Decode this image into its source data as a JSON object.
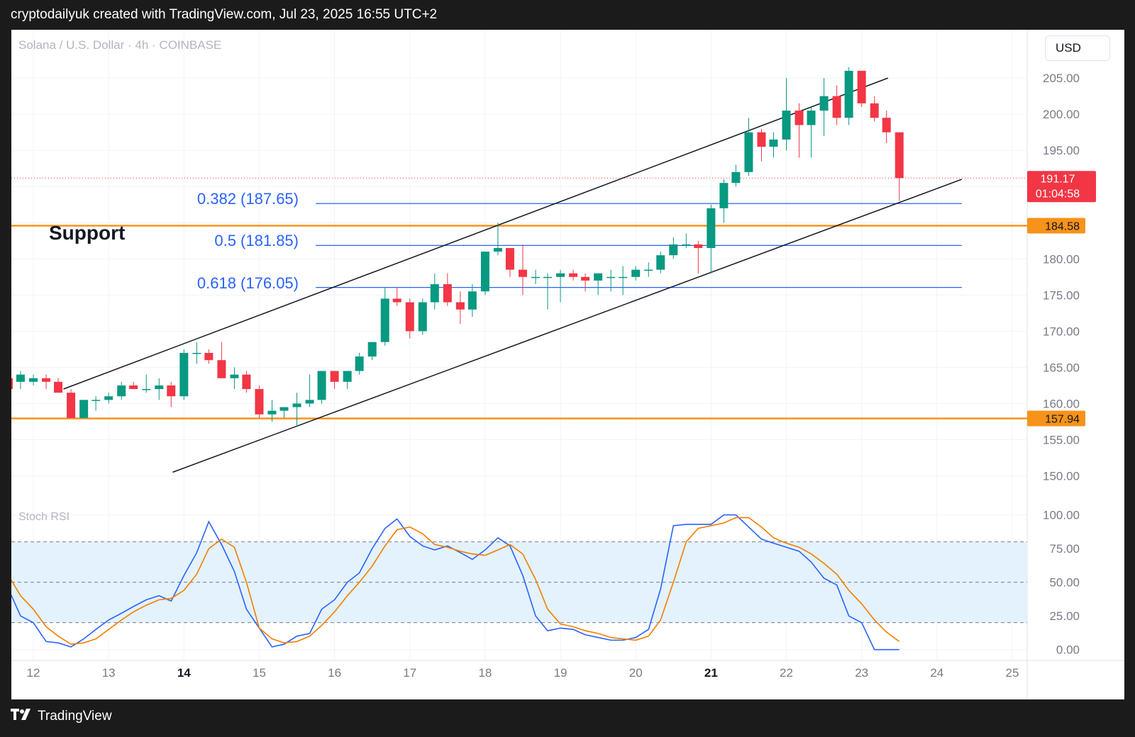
{
  "header": {
    "caption": "cryptodailyuk created with TradingView.com, Jul 23, 2025 16:55 UTC+2"
  },
  "footer": {
    "brand": "TradingView",
    "logo_icon": "tradingview-logo-icon"
  },
  "chart_header": {
    "symbol": "Solana / U.S. Dollar · 4h · COINBASE",
    "currency": "USD"
  },
  "colors": {
    "up": "#089981",
    "down": "#f23645",
    "fib": "#2962ff",
    "support": "#f7931a",
    "stoch_k": "#2962ff",
    "stoch_d": "#f57c00",
    "band": "#e3f2fd"
  },
  "labels": {
    "support": "Support",
    "fib_382": "0.382 (187.65)",
    "fib_500": "0.5 (181.85)",
    "fib_618": "0.618 (176.05)",
    "price_now": "191.17",
    "countdown": "01:04:58",
    "upper_support": "184.58",
    "lower_support": "157.94",
    "stoch_title": "Stoch RSI"
  },
  "chart_data": [
    {
      "type": "candlestick",
      "title": "Solana / U.S. Dollar · 4h · COINBASE",
      "y_ticks": [
        150,
        155,
        160,
        165,
        170,
        175,
        180,
        185,
        190,
        195,
        200,
        205
      ],
      "y_tick_labels": [
        "150.00",
        "155.00",
        "160.00",
        "165.00",
        "170.00",
        "175.00",
        "180.00",
        "",
        "",
        "195.00",
        "200.00",
        "205.00"
      ],
      "ylim": [
        147.5,
        210.5
      ],
      "x_tick_labels": [
        {
          "label": "12",
          "day": 12,
          "bold": false
        },
        {
          "label": "13",
          "day": 13,
          "bold": false
        },
        {
          "label": "14",
          "day": 14,
          "bold": true
        },
        {
          "label": "15",
          "day": 15,
          "bold": false
        },
        {
          "label": "16",
          "day": 16,
          "bold": false
        },
        {
          "label": "17",
          "day": 17,
          "bold": false
        },
        {
          "label": "18",
          "day": 18,
          "bold": false
        },
        {
          "label": "19",
          "day": 19,
          "bold": false
        },
        {
          "label": "20",
          "day": 20,
          "bold": false
        },
        {
          "label": "21",
          "day": 21,
          "bold": true
        },
        {
          "label": "22",
          "day": 22,
          "bold": false
        },
        {
          "label": "23",
          "day": 23,
          "bold": false
        },
        {
          "label": "24",
          "day": 24,
          "bold": false
        },
        {
          "label": "25",
          "day": 25,
          "bold": false
        }
      ],
      "candles": [
        [
          11.67,
          163.5,
          165.0,
          161.5,
          162.0
        ],
        [
          11.83,
          163.0,
          164.5,
          162.0,
          164.0
        ],
        [
          12.0,
          163.0,
          164.0,
          162.5,
          163.5
        ],
        [
          12.17,
          163.5,
          164.0,
          162.0,
          163.0
        ],
        [
          12.33,
          163.0,
          163.5,
          161.5,
          161.5
        ],
        [
          12.5,
          161.5,
          162.0,
          158.0,
          158.0
        ],
        [
          12.67,
          158.0,
          160.5,
          158.0,
          160.5
        ],
        [
          12.83,
          160.5,
          161.0,
          159.0,
          160.5
        ],
        [
          13.0,
          160.5,
          161.5,
          160.0,
          161.0
        ],
        [
          13.17,
          161.0,
          163.0,
          160.5,
          162.5
        ],
        [
          13.33,
          162.5,
          163.0,
          162.0,
          162.0
        ],
        [
          13.5,
          162.0,
          164.0,
          161.5,
          162.0
        ],
        [
          13.67,
          162.0,
          163.5,
          160.5,
          162.5
        ],
        [
          13.83,
          162.5,
          163.0,
          159.5,
          161.0
        ],
        [
          14.0,
          161.0,
          167.5,
          160.5,
          167.0
        ],
        [
          14.17,
          167.0,
          168.5,
          165.5,
          167.0
        ],
        [
          14.33,
          167.0,
          167.5,
          165.5,
          166.0
        ],
        [
          14.5,
          166.0,
          168.5,
          163.5,
          163.5
        ],
        [
          14.67,
          163.5,
          165.0,
          162.0,
          164.0
        ],
        [
          14.83,
          164.0,
          164.5,
          161.5,
          162.0
        ],
        [
          15.0,
          162.0,
          162.5,
          158.0,
          158.5
        ],
        [
          15.17,
          158.5,
          160.5,
          157.5,
          159.0
        ],
        [
          15.33,
          159.0,
          159.5,
          158.0,
          159.5
        ],
        [
          15.5,
          159.5,
          161.5,
          157.0,
          160.0
        ],
        [
          15.67,
          160.0,
          164.0,
          159.5,
          160.5
        ],
        [
          15.83,
          160.5,
          164.5,
          160.0,
          164.5
        ],
        [
          16.0,
          164.5,
          164.5,
          162.0,
          163.0
        ],
        [
          16.17,
          163.0,
          164.5,
          162.0,
          164.5
        ],
        [
          16.33,
          164.5,
          167.0,
          164.0,
          166.5
        ],
        [
          16.5,
          166.5,
          168.5,
          166.0,
          168.5
        ],
        [
          16.67,
          168.5,
          176.0,
          168.0,
          174.5
        ],
        [
          16.83,
          174.5,
          176.0,
          173.5,
          174.0
        ],
        [
          17.0,
          174.0,
          174.5,
          169.0,
          170.0
        ],
        [
          17.17,
          170.0,
          174.5,
          169.5,
          174.0
        ],
        [
          17.33,
          174.0,
          178.0,
          173.0,
          176.5
        ],
        [
          17.5,
          176.5,
          178.0,
          173.5,
          174.0
        ],
        [
          17.67,
          174.0,
          175.5,
          171.0,
          173.0
        ],
        [
          17.83,
          173.0,
          176.5,
          172.0,
          175.5
        ],
        [
          18.0,
          175.5,
          181.0,
          175.0,
          181.0
        ],
        [
          18.17,
          181.0,
          185.0,
          180.5,
          181.5
        ],
        [
          18.33,
          181.5,
          181.5,
          177.5,
          178.5
        ],
        [
          18.5,
          178.5,
          182.0,
          175.0,
          177.5
        ],
        [
          18.67,
          177.5,
          178.5,
          176.5,
          177.5
        ],
        [
          18.83,
          177.5,
          178.0,
          173.0,
          177.5
        ],
        [
          19.0,
          177.5,
          178.5,
          174.0,
          178.0
        ],
        [
          19.17,
          178.0,
          178.5,
          177.0,
          177.5
        ],
        [
          19.33,
          177.5,
          178.0,
          175.5,
          177.0
        ],
        [
          19.5,
          177.0,
          178.0,
          175.0,
          178.0
        ],
        [
          19.67,
          177.5,
          178.5,
          175.5,
          177.5
        ],
        [
          19.83,
          177.5,
          179.0,
          175.0,
          177.5
        ],
        [
          20.0,
          177.5,
          179.0,
          177.0,
          178.5
        ],
        [
          20.17,
          178.5,
          179.5,
          177.5,
          178.5
        ],
        [
          20.33,
          178.5,
          181.0,
          178.0,
          180.5
        ],
        [
          20.5,
          180.5,
          183.0,
          180.0,
          182.0
        ],
        [
          20.67,
          182.0,
          183.5,
          181.5,
          182.0
        ],
        [
          20.83,
          182.0,
          182.5,
          178.0,
          181.5
        ],
        [
          21.0,
          181.5,
          187.5,
          178.0,
          187.0
        ],
        [
          21.17,
          187.0,
          191.0,
          185.0,
          190.5
        ],
        [
          21.33,
          190.5,
          193.0,
          190.0,
          192.0
        ],
        [
          21.5,
          192.0,
          199.5,
          191.5,
          197.5
        ],
        [
          21.67,
          197.5,
          198.0,
          193.5,
          195.5
        ],
        [
          21.83,
          195.5,
          197.5,
          194.0,
          196.5
        ],
        [
          22.0,
          196.5,
          205.0,
          195.0,
          200.5
        ],
        [
          22.17,
          200.5,
          201.5,
          194.0,
          198.5
        ],
        [
          22.33,
          198.5,
          201.0,
          194.0,
          200.5
        ],
        [
          22.5,
          200.5,
          205.0,
          197.0,
          202.5
        ],
        [
          22.67,
          202.5,
          204.0,
          198.5,
          199.5
        ],
        [
          22.83,
          199.5,
          206.5,
          198.5,
          206.0
        ],
        [
          23.0,
          206.0,
          206.0,
          201.0,
          201.5
        ],
        [
          23.17,
          201.5,
          202.5,
          199.0,
          199.5
        ],
        [
          23.33,
          199.5,
          200.5,
          196.0,
          197.5
        ],
        [
          23.5,
          197.5,
          197.5,
          188.0,
          191.17
        ]
      ],
      "candle_format": [
        "day",
        "open",
        "high",
        "low",
        "close"
      ],
      "current_price": 191.17,
      "horizontal_levels": [
        {
          "name": "fib 0.382",
          "value": 187.65,
          "from_day": 15.75,
          "to_day": 24.33
        },
        {
          "name": "fib 0.5",
          "value": 181.85,
          "from_day": 15.75,
          "to_day": 24.33
        },
        {
          "name": "fib 0.618",
          "value": 176.05,
          "from_day": 15.75,
          "to_day": 24.33
        },
        {
          "name": "support upper",
          "value": 184.58
        },
        {
          "name": "support lower",
          "value": 157.94
        }
      ],
      "channel_lines": [
        {
          "name": "channel upper",
          "points": [
            [
              12.4,
              162.0
            ],
            [
              23.35,
              205.0
            ]
          ]
        },
        {
          "name": "channel lower",
          "points": [
            [
              13.85,
              150.5
            ],
            [
              24.33,
              191.0
            ]
          ]
        }
      ]
    },
    {
      "type": "line",
      "title": "Stoch RSI",
      "y_ticks": [
        0,
        25,
        50,
        75,
        100
      ],
      "ylim": [
        -7,
        104
      ],
      "band": [
        20,
        80
      ],
      "x": [
        11.67,
        11.83,
        12.0,
        12.17,
        12.33,
        12.5,
        12.67,
        12.83,
        13.0,
        13.17,
        13.33,
        13.5,
        13.67,
        13.83,
        14.0,
        14.17,
        14.33,
        14.5,
        14.67,
        14.83,
        15.0,
        15.17,
        15.33,
        15.5,
        15.67,
        15.83,
        16.0,
        16.17,
        16.33,
        16.5,
        16.67,
        16.83,
        17.0,
        17.17,
        17.33,
        17.5,
        17.67,
        17.83,
        18.0,
        18.17,
        18.33,
        18.5,
        18.67,
        18.83,
        19.0,
        19.17,
        19.33,
        19.5,
        19.67,
        19.83,
        20.0,
        20.17,
        20.33,
        20.5,
        20.67,
        20.83,
        21.0,
        21.17,
        21.33,
        21.5,
        21.67,
        21.83,
        22.0,
        22.17,
        22.33,
        22.5,
        22.67,
        22.83,
        23.0,
        23.17,
        23.33,
        23.5
      ],
      "series": [
        {
          "name": "K",
          "values": [
            45,
            25,
            20,
            6,
            5,
            2,
            8,
            15,
            22,
            27,
            32,
            37,
            40,
            36,
            55,
            72,
            95,
            78,
            58,
            30,
            16,
            2,
            4,
            10,
            12,
            30,
            37,
            50,
            57,
            75,
            90,
            97,
            84,
            77,
            74,
            77,
            72,
            67,
            74,
            83,
            77,
            55,
            25,
            14,
            16,
            15,
            11,
            9,
            7,
            7,
            9,
            15,
            45,
            92,
            93,
            93,
            93,
            100,
            100,
            91,
            82,
            79,
            76,
            73,
            65,
            53,
            48,
            25,
            20,
            0,
            0,
            0
          ]
        },
        {
          "name": "D",
          "values": [
            55,
            40,
            30,
            17,
            10,
            4,
            5,
            8,
            15,
            22,
            28,
            33,
            37,
            38,
            44,
            56,
            75,
            82,
            76,
            50,
            16,
            8,
            5,
            6,
            10,
            18,
            28,
            40,
            50,
            62,
            77,
            89,
            91,
            86,
            78,
            76,
            73,
            71,
            70,
            74,
            78,
            71,
            52,
            30,
            19,
            17,
            14,
            12,
            9,
            8,
            7,
            10,
            22,
            50,
            80,
            90,
            92,
            94,
            98,
            98,
            91,
            83,
            79,
            76,
            71,
            64,
            56,
            44,
            34,
            22,
            13,
            6
          ]
        }
      ]
    }
  ]
}
